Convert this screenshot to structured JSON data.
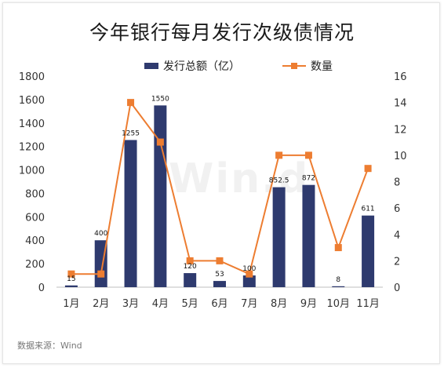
{
  "title": "今年银行每月发行次级债情况",
  "legend": {
    "bar_label": "发行总额（亿）",
    "line_label": "数量"
  },
  "source": "数据来源：Wind",
  "watermark": "Win.d",
  "colors": {
    "bar": "#2e3a6e",
    "line": "#ed7d31"
  },
  "chart_data": {
    "type": "bar",
    "title": "今年银行每月发行次级债情况",
    "categories": [
      "1月",
      "2月",
      "3月",
      "4月",
      "5月",
      "6月",
      "7月",
      "8月",
      "9月",
      "10月",
      "11月"
    ],
    "series": [
      {
        "name": "发行总额（亿）",
        "type": "bar",
        "axis": "left",
        "values": [
          15,
          400,
          1255,
          1550,
          120,
          53,
          100,
          852.5,
          872,
          8,
          611
        ],
        "labels": [
          "15",
          "400",
          "1255",
          "1550",
          "120",
          "53",
          "100",
          "852.5",
          "872",
          "8",
          "611"
        ]
      },
      {
        "name": "数量",
        "type": "line",
        "axis": "right",
        "values": [
          1,
          1,
          14,
          11,
          2,
          2,
          1,
          10,
          10,
          3,
          9
        ]
      }
    ],
    "ylim": [
      0,
      1800
    ],
    "yticks": [
      "0",
      "200",
      "400",
      "600",
      "800",
      "1000",
      "1200",
      "1400",
      "1600",
      "1800"
    ],
    "y2lim": [
      0,
      16
    ],
    "y2ticks": [
      "0",
      "2",
      "4",
      "6",
      "8",
      "10",
      "12",
      "14",
      "16"
    ],
    "grid": false,
    "legend_position": "top"
  }
}
